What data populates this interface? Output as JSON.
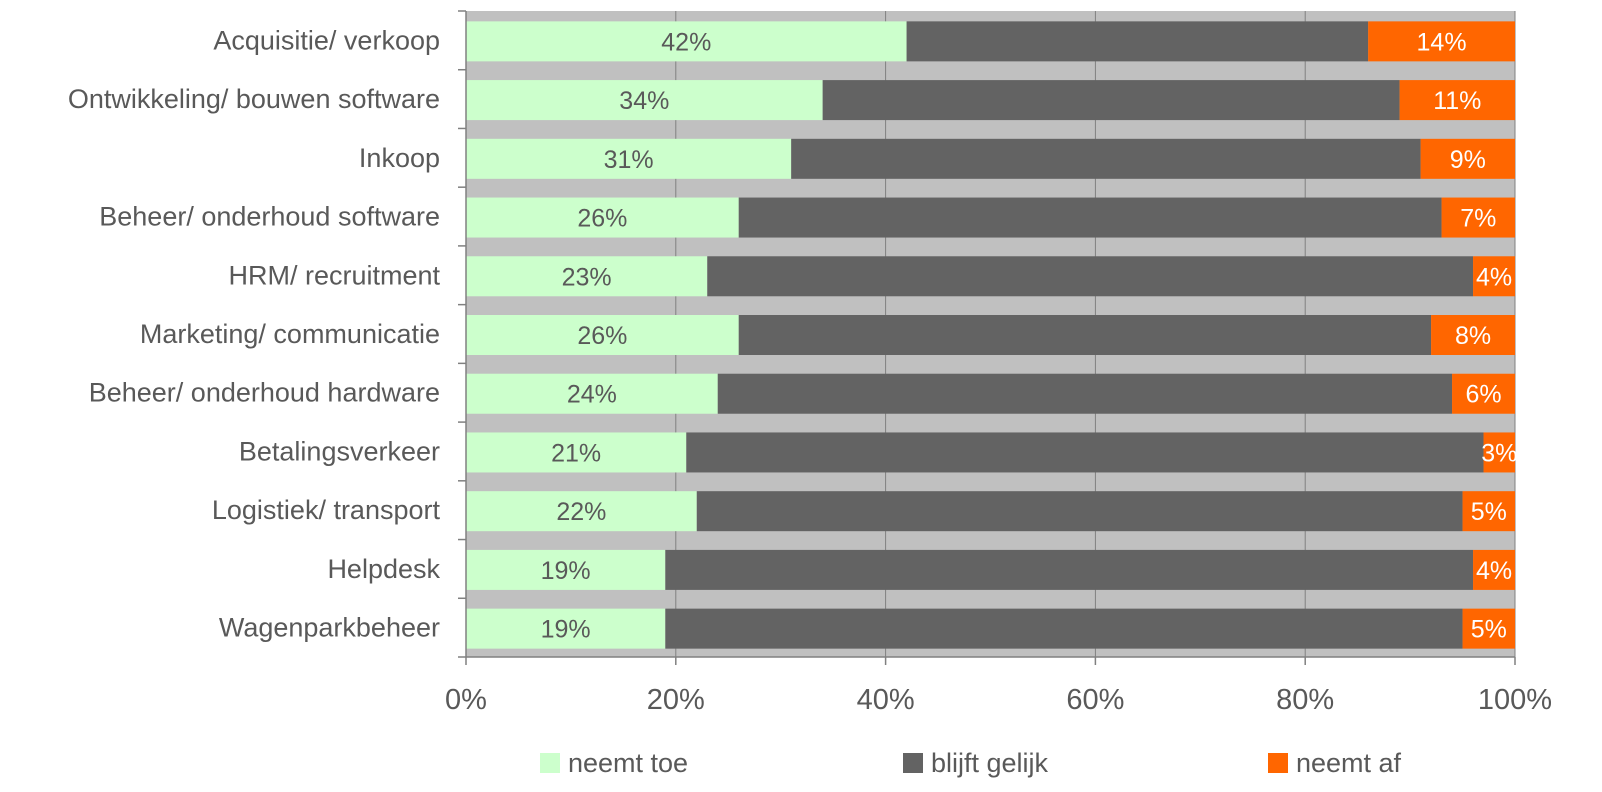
{
  "chart_data": {
    "type": "bar",
    "orientation": "horizontal",
    "stacked": "percent",
    "categories": [
      "Acquisitie/ verkoop",
      "Ontwikkeling/ bouwen software",
      "Inkoop",
      "Beheer/ onderhoud software",
      "HRM/ recruitment",
      "Marketing/ communicatie",
      "Beheer/ onderhoud hardware",
      "Betalingsverkeer",
      "Logistiek/ transport",
      "Helpdesk",
      "Wagenparkbeheer"
    ],
    "series": [
      {
        "name": "neemt toe",
        "color": "#ccffcc",
        "label_color": "#595959",
        "values": [
          42,
          34,
          31,
          26,
          23,
          26,
          24,
          21,
          22,
          19,
          19
        ],
        "labels": [
          "42%",
          "34%",
          "31%",
          "26%",
          "23%",
          "26%",
          "24%",
          "21%",
          "22%",
          "19%",
          "19%"
        ]
      },
      {
        "name": "blijft gelijk",
        "color": "#636363",
        "values": [
          44,
          55,
          60,
          67,
          73,
          66,
          70,
          76,
          73,
          77,
          76
        ]
      },
      {
        "name": "neemt af",
        "color": "#ff6600",
        "label_color": "#ffffff",
        "values": [
          14,
          11,
          9,
          7,
          4,
          8,
          6,
          3,
          5,
          4,
          5
        ],
        "labels": [
          "14%",
          "11%",
          "9%",
          "7%",
          "4%",
          "8%",
          "6%",
          "3%",
          "5%",
          "4%",
          "5%"
        ]
      }
    ],
    "xlim": [
      0,
      100
    ],
    "x_ticks": [
      "0%",
      "20%",
      "40%",
      "60%",
      "80%",
      "100%"
    ],
    "grid": true,
    "plot_background": "#c0c0c0",
    "gridline_color": "#808080",
    "legend_position": "bottom"
  }
}
